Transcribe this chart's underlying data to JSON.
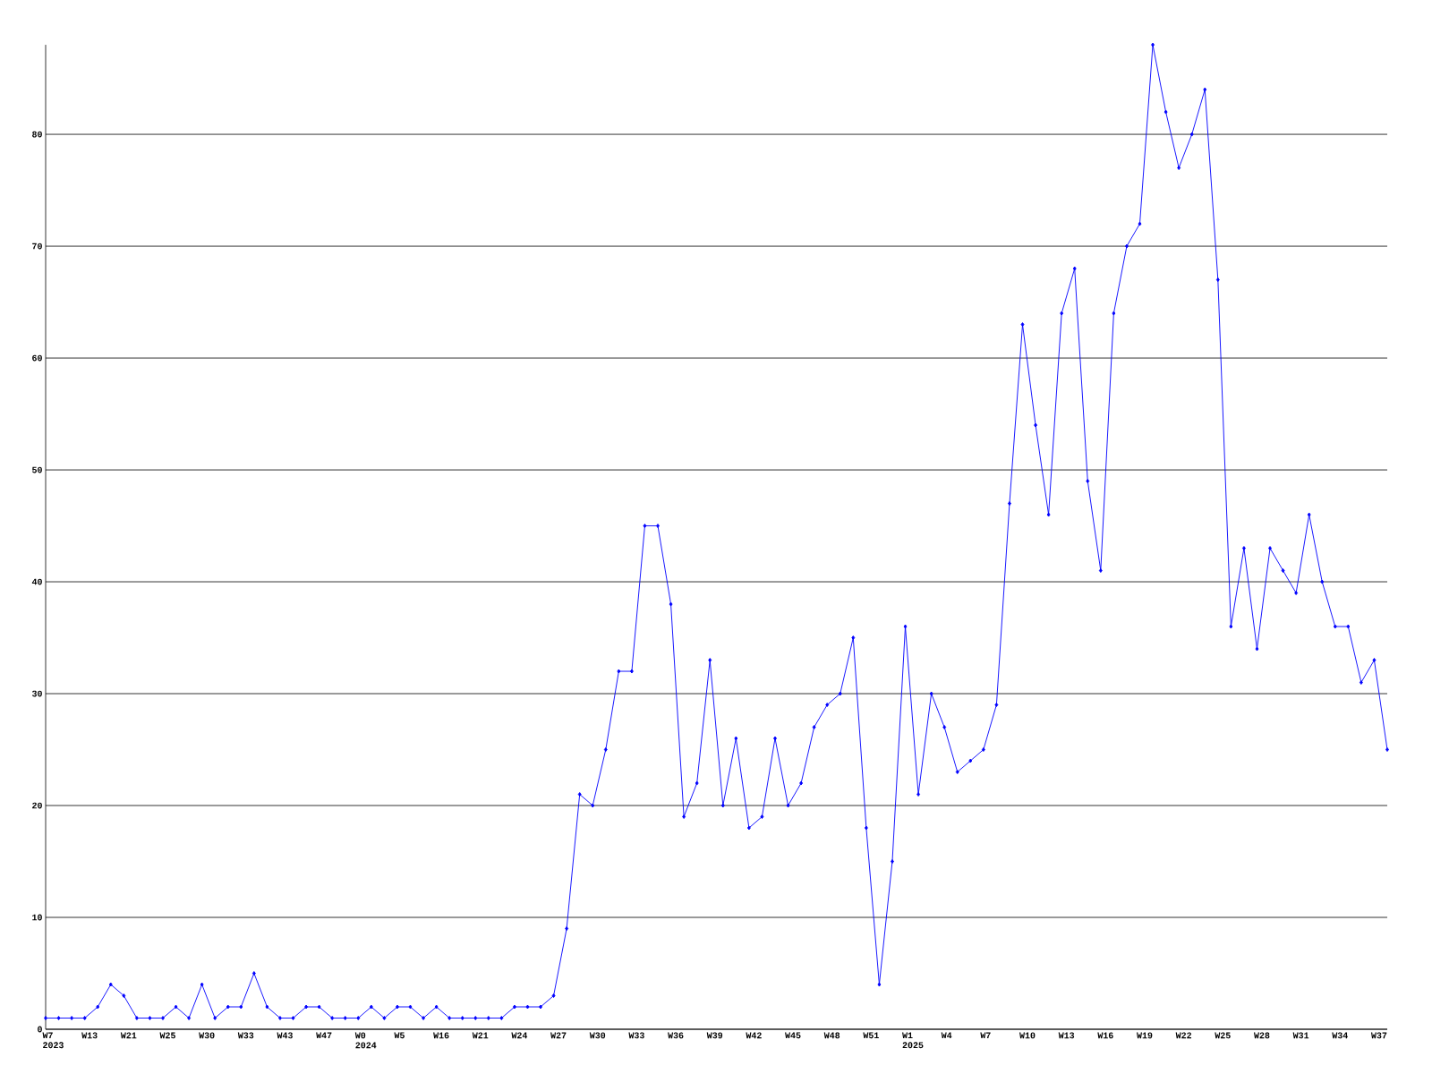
{
  "chart_data": {
    "type": "line",
    "categories": [
      "W7 2023",
      null,
      null,
      "W13",
      null,
      null,
      "W21",
      null,
      null,
      "W25",
      null,
      null,
      "W30",
      null,
      null,
      "W33",
      null,
      null,
      "W43",
      null,
      null,
      "W47",
      null,
      null,
      "W0 2024",
      null,
      null,
      "W5",
      null,
      null,
      "W16",
      null,
      null,
      "W21",
      null,
      null,
      "W24",
      null,
      null,
      "W27",
      null,
      null,
      "W30",
      null,
      null,
      "W33",
      null,
      null,
      "W36",
      null,
      null,
      "W39",
      null,
      null,
      "W42",
      null,
      null,
      "W45",
      null,
      null,
      "W48",
      null,
      null,
      "W51",
      null,
      null,
      "W1 2025",
      null,
      null,
      "W4",
      null,
      null,
      "W7",
      null,
      null,
      "W10",
      null,
      null,
      "W13",
      null,
      null,
      "W16",
      null,
      null,
      "W19",
      null,
      null,
      "W22",
      null,
      null,
      "W25",
      null,
      null,
      "W28",
      null,
      null,
      "W31",
      null,
      null,
      "W34",
      null,
      null,
      "W37",
      null
    ],
    "values": [
      1,
      1,
      1,
      1,
      2,
      4,
      3,
      1,
      1,
      1,
      2,
      1,
      4,
      1,
      2,
      2,
      5,
      2,
      1,
      1,
      2,
      2,
      1,
      1,
      1,
      2,
      1,
      2,
      2,
      1,
      2,
      1,
      1,
      1,
      1,
      1,
      2,
      2,
      2,
      3,
      9,
      21,
      20,
      25,
      32,
      32,
      45,
      45,
      38,
      19,
      22,
      33,
      20,
      26,
      18,
      19,
      26,
      20,
      22,
      27,
      29,
      30,
      35,
      18,
      4,
      15,
      36,
      21,
      30,
      27,
      23,
      24,
      25,
      29,
      47,
      63,
      54,
      46,
      64,
      68,
      49,
      41,
      64,
      70,
      72,
      88,
      82,
      77,
      80,
      84,
      67,
      36,
      43,
      34,
      43,
      41,
      39,
      46,
      40,
      36,
      36,
      31,
      33,
      25
    ],
    "color": "#0000ff",
    "ylim": [
      0,
      88
    ],
    "yticks": [
      0,
      10,
      20,
      30,
      40,
      50,
      60,
      70,
      80
    ],
    "grid": "y",
    "marker": "diamond",
    "line_style": "solid"
  }
}
